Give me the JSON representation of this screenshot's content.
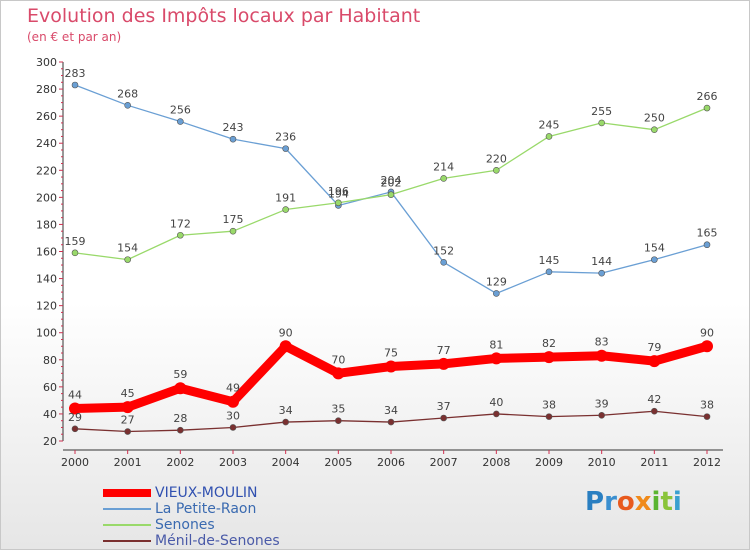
{
  "title": "Evolution des Impôts locaux par Habitant",
  "subtitle": "(en € et par an)",
  "logo": {
    "letters": [
      "P",
      "r",
      "o",
      "x",
      "i",
      "t",
      "i"
    ],
    "colors": [
      "#2a7fc1",
      "#3a8fd0",
      "#e85a1e",
      "#f08a1a",
      "#5bb531",
      "#8ac43a",
      "#3aa0d0"
    ]
  },
  "chart_data": {
    "type": "line",
    "x": [
      2000,
      2001,
      2002,
      2003,
      2004,
      2005,
      2006,
      2007,
      2008,
      2009,
      2010,
      2011,
      2012
    ],
    "ylim": [
      20,
      300
    ],
    "yticks": [
      20,
      40,
      60,
      80,
      100,
      120,
      140,
      160,
      180,
      200,
      220,
      240,
      260,
      280,
      300
    ],
    "grid": false,
    "legend": "bottom-left",
    "series": [
      {
        "name": "VIEUX-MOULIN",
        "color": "#ff0000",
        "values": [
          44,
          45,
          59,
          49,
          90,
          70,
          75,
          77,
          81,
          82,
          83,
          79,
          90
        ]
      },
      {
        "name": "La Petite-Raon",
        "color": "#6a9fd4",
        "values": [
          283,
          268,
          256,
          243,
          236,
          194,
          204,
          152,
          129,
          145,
          144,
          154,
          165
        ]
      },
      {
        "name": "Senones",
        "color": "#99d96a",
        "values": [
          159,
          154,
          172,
          175,
          191,
          196,
          202,
          214,
          220,
          245,
          255,
          250,
          266
        ]
      },
      {
        "name": "Ménil-de-Senones",
        "color": "#7a3030",
        "values": [
          29,
          27,
          28,
          30,
          34,
          35,
          34,
          37,
          40,
          38,
          39,
          42,
          38
        ]
      }
    ]
  }
}
